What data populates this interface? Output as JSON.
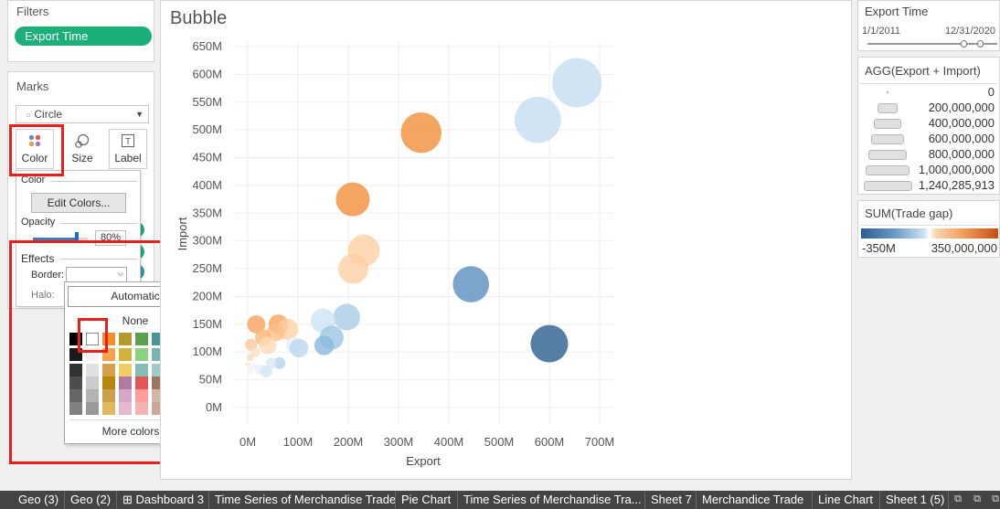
{
  "filters": {
    "title": "Filters",
    "pill": "Export Time"
  },
  "marks": {
    "title": "Marks",
    "mark_type": "Circle",
    "buttons": {
      "color": "Color",
      "size": "Size",
      "label": "Label"
    }
  },
  "color_popup": {
    "color_heading": "Color",
    "edit_colors": "Edit Colors...",
    "opacity_heading": "Opacity",
    "opacity_value": "80%",
    "opacity_fraction": 0.8,
    "effects_heading": "Effects",
    "border_label": "Border:",
    "halo_label": "Halo:"
  },
  "border_dropdown": {
    "automatic": "Automatic",
    "none": "None",
    "more_colors": "More colors...",
    "swatch_columns": [
      [
        "#000000",
        "#1a1a1a",
        "#333333",
        "#4d4d4d",
        "#666666",
        "#808080"
      ],
      [
        "#ffffff",
        "#f2f2f2",
        "#e0e0e0",
        "#cccccc",
        "#b3b3b3",
        "#999999"
      ],
      [
        "#f28e2b",
        "#f5a34d",
        "#d4a04a",
        "#b8860b",
        "#c9a14a",
        "#e0b85e"
      ],
      [
        "#b6992d",
        "#d1b23a",
        "#f1ce63",
        "#b07aa1",
        "#d4a6c8",
        "#e6b8d0"
      ],
      [
        "#59a14f",
        "#8cd17d",
        "#86bcb6",
        "#e15759",
        "#ff9d9a",
        "#f4b3b3"
      ],
      [
        "#499894",
        "#79b4b0",
        "#a0cbc8",
        "#9d7660",
        "#d7b5a6",
        "#c9a89a"
      ],
      [
        "#4e79a7",
        "#79a4d1",
        "#a0cbe8",
        "#79706e",
        "#bab0ac",
        "#d3cccc"
      ],
      [
        "#5f6b7a",
        "#8899aa",
        "#b4c4d4",
        "#76b7b2",
        "#ff9da7",
        "#edc948"
      ]
    ]
  },
  "chart": {
    "title": "Bubble"
  },
  "chart_data": {
    "type": "scatter",
    "title": "Bubble",
    "xlabel": "Export",
    "ylabel": "Import",
    "x_ticks": [
      "0M",
      "100M",
      "200M",
      "300M",
      "400M",
      "500M",
      "600M",
      "700M"
    ],
    "y_ticks": [
      "0M",
      "50M",
      "100M",
      "150M",
      "200M",
      "250M",
      "300M",
      "350M",
      "400M",
      "450M",
      "500M",
      "550M",
      "600M",
      "650M"
    ],
    "xlim": [
      -30,
      730
    ],
    "ylim": [
      -30,
      660
    ],
    "size_field": "AGG(Export + Import)",
    "color_field": "SUM(Trade gap)",
    "opacity": 0.8,
    "points": [
      {
        "x": 655,
        "y": 585,
        "color": "#c6ddf0",
        "size": 1240
      },
      {
        "x": 577,
        "y": 518,
        "color": "#c6ddf0",
        "size": 1095
      },
      {
        "x": 345,
        "y": 495,
        "color": "#f28f3b",
        "size": 840
      },
      {
        "x": 209,
        "y": 375,
        "color": "#f28f3b",
        "size": 584
      },
      {
        "x": 231,
        "y": 283,
        "color": "#fdd0a2",
        "size": 514
      },
      {
        "x": 210,
        "y": 250,
        "color": "#fdd0a2",
        "size": 460
      },
      {
        "x": 444,
        "y": 222,
        "color": "#5b8ebf",
        "size": 666
      },
      {
        "x": 600,
        "y": 115,
        "color": "#2c5f8e",
        "size": 715
      },
      {
        "x": 197,
        "y": 163,
        "color": "#a9cce6",
        "size": 360
      },
      {
        "x": 150,
        "y": 156,
        "color": "#cde3f2",
        "size": 306
      },
      {
        "x": 167,
        "y": 126,
        "color": "#9ec5e3",
        "size": 293
      },
      {
        "x": 152,
        "y": 112,
        "color": "#8ab8dc",
        "size": 196
      },
      {
        "x": 17,
        "y": 150,
        "color": "#f7a35c",
        "size": 167
      },
      {
        "x": 61,
        "y": 150,
        "color": "#f9a45c",
        "size": 197
      },
      {
        "x": 79,
        "y": 141,
        "color": "#fdd0a2",
        "size": 225
      },
      {
        "x": 56,
        "y": 136,
        "color": "#fdc08a",
        "size": 166
      },
      {
        "x": 31,
        "y": 126,
        "color": "#fbb574",
        "size": 137
      },
      {
        "x": 40,
        "y": 112,
        "color": "#fddbb8",
        "size": 160
      },
      {
        "x": 92,
        "y": 113,
        "color": "#e3eef8",
        "size": 131
      },
      {
        "x": 102,
        "y": 107,
        "color": "#bcd8ee",
        "size": 178
      },
      {
        "x": 7,
        "y": 113,
        "color": "#fdc89b",
        "size": 74
      },
      {
        "x": 15,
        "y": 100,
        "color": "#fde0c4",
        "size": 51
      },
      {
        "x": 5,
        "y": 90,
        "color": "#fdd8b8",
        "size": 24
      },
      {
        "x": 0,
        "y": 78,
        "color": "#fde9d6",
        "size": 12
      },
      {
        "x": 10,
        "y": 75,
        "color": "#f2f2f2",
        "size": 24
      },
      {
        "x": 25,
        "y": 68,
        "color": "#e9f0f7",
        "size": 59
      },
      {
        "x": 37,
        "y": 65,
        "color": "#d3e5f3",
        "size": 74
      },
      {
        "x": 63,
        "y": 80,
        "color": "#b6d3ec",
        "size": 73
      },
      {
        "x": 47,
        "y": 80,
        "color": "#dce9f5",
        "size": 60
      },
      {
        "x": 5,
        "y": 66,
        "color": "#eef4fa",
        "size": 21
      }
    ]
  },
  "export_time": {
    "title": "Export Time",
    "start": "1/1/2011",
    "end": "12/31/2020"
  },
  "size_legend": {
    "title": "AGG(Export + Import)",
    "items": [
      {
        "label": "0",
        "value": 0
      },
      {
        "label": "200,000,000",
        "value": 200000000
      },
      {
        "label": "400,000,000",
        "value": 400000000
      },
      {
        "label": "600,000,000",
        "value": 600000000
      },
      {
        "label": "800,000,000",
        "value": 800000000
      },
      {
        "label": "1,000,000,000",
        "value": 1000000000
      },
      {
        "label": "1,240,285,913",
        "value": 1240285913
      }
    ]
  },
  "color_legend": {
    "title": "SUM(Trade gap)",
    "min": "-350M",
    "max": "350,000,000"
  },
  "tabs": [
    "Geo (3)",
    "Geo (2)",
    "Dashboard 3",
    "Time Series of Merchandise Trade",
    "Pie Chart",
    "Time Series of Merchandise Tra...",
    "Sheet 7",
    "Merchandice Trade",
    "Line Chart",
    "Sheet 1 (5)"
  ]
}
